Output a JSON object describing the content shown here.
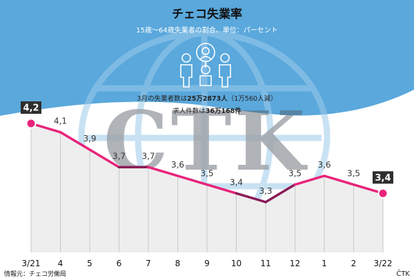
{
  "header": {
    "title": "チェコ失業率",
    "subtitle": "15歳～64歳失業者の割合、単位：パーセント"
  },
  "annotations": {
    "line1_prefix": "3月の失業者数は",
    "line1_value": "25万2873人",
    "line1_suffix": "（1万560人減）",
    "line2_prefix": "求人件数は",
    "line2_value": "36万168件"
  },
  "watermark": {
    "text": "CTK"
  },
  "footer": {
    "source": "情報元：チェコ労働局",
    "brand": "ČTK"
  },
  "colors": {
    "header_bg": "#5aa8dc",
    "line": "#e8237a",
    "line_dark": "#8a1a55",
    "area_fill": "#eeeeee",
    "grid": "#c8c8c8",
    "callout_bg": "#2f2f2f"
  },
  "chart_data": {
    "type": "area",
    "title": "チェコ失業率",
    "subtitle": "15歳～64歳失業者の割合、単位：パーセント",
    "categories": [
      "3/21",
      "4",
      "5",
      "6",
      "7",
      "8",
      "9",
      "10",
      "11",
      "12",
      "1",
      "2",
      "3/22"
    ],
    "series": [
      {
        "values": [
          4.2,
          4.1,
          3.9,
          3.7,
          3.7,
          3.6,
          3.5,
          3.4,
          3.3,
          3.5,
          3.6,
          3.5,
          3.4
        ]
      }
    ],
    "value_labels": [
      "4,2",
      "4,1",
      "3,9",
      "3,7",
      "3,7",
      "3,6",
      "3,5",
      "3,4",
      "3,3",
      "3,5",
      "3,6",
      "3,5",
      "3,4"
    ],
    "highlighted_points": [
      0,
      12
    ],
    "ylim": [
      2.5,
      4.4
    ],
    "grid": "vertical",
    "legend": "none"
  }
}
